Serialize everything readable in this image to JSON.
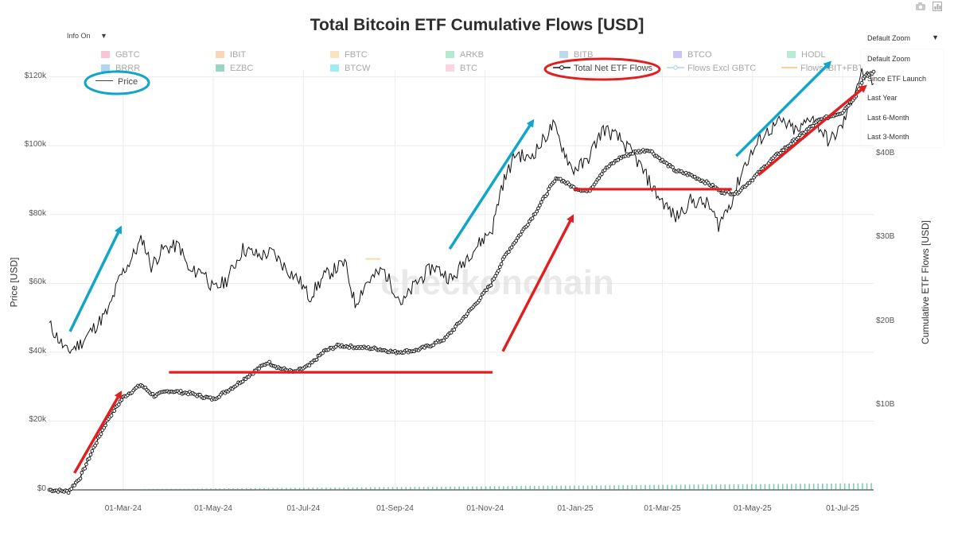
{
  "title": "Total Bitcoin ETF Cumulative Flows [USD]",
  "info_toggle": {
    "label": "Info On",
    "caret": "▼"
  },
  "modebar": {
    "camera_icon": "camera-icon",
    "chart_icon": "bar-chart-icon"
  },
  "zoom": {
    "selected": "Default Zoom",
    "caret": "▼",
    "options": [
      "Default Zoom",
      "Since ETF Launch",
      "Last Year",
      "Last 6-Month",
      "Last 3-Month"
    ]
  },
  "legend": {
    "row1": [
      {
        "label": "GBTC",
        "color": "#f27fa1"
      },
      {
        "label": "IBIT",
        "color": "#f4a261"
      },
      {
        "label": "FBTC",
        "color": "#f6c177"
      },
      {
        "label": "ARKB",
        "color": "#5ccf96"
      },
      {
        "label": "BITB",
        "color": "#6fa8dc"
      },
      {
        "label": "BTCO",
        "color": "#8e7ce0"
      },
      {
        "label": "HODL",
        "color": "#5fd3a0"
      }
    ],
    "row2": [
      {
        "label": "BRRR",
        "color": "#4aa3df"
      },
      {
        "label": "EZBC",
        "color": "#1aa37a"
      },
      {
        "label": "BTCW",
        "color": "#28d9e0"
      },
      {
        "label": "BTC",
        "color": "#f5a3c0"
      }
    ],
    "price_label": "Price",
    "total_label": "Total Net ETF Flows",
    "excl_gbtc_label": "Flows Excl GBTC",
    "ibit_fbtc_label": "Flows IBIT+FBT…"
  },
  "watermark": "checkonchain",
  "annotation_colors": {
    "blue": "#11a5c7",
    "red": "#e02020"
  },
  "chart_data": {
    "type": "line",
    "title": "Total Bitcoin ETF Cumulative Flows [USD]",
    "xlabel": "",
    "x_ticks": [
      "01-Mar-24",
      "01-May-24",
      "01-Jul-24",
      "01-Sep-24",
      "01-Nov-24",
      "01-Jan-25",
      "01-Mar-25",
      "01-May-25",
      "01-Jul-25"
    ],
    "y_left": {
      "label": "Price [USD]",
      "ticks": [
        "$0",
        "$20k",
        "$40k",
        "$60k",
        "$80k",
        "$100k",
        "$120k"
      ],
      "range": [
        0,
        122000
      ]
    },
    "y_right": {
      "label": "Cumulative ETF Flows [USD]",
      "ticks": [
        "$10B",
        "$20B",
        "$30B",
        "$40B"
      ],
      "range": [
        0,
        50
      ]
    },
    "x_range": [
      "2024-01-11",
      "2025-07-22"
    ],
    "series": [
      {
        "name": "Price",
        "axis": "left",
        "style": "line",
        "x": [
          "2024-01-11",
          "2024-01-23",
          "2024-02-01",
          "2024-02-10",
          "2024-02-20",
          "2024-02-28",
          "2024-03-05",
          "2024-03-14",
          "2024-03-20",
          "2024-03-28",
          "2024-04-08",
          "2024-04-15",
          "2024-04-24",
          "2024-05-01",
          "2024-05-10",
          "2024-05-21",
          "2024-06-01",
          "2024-06-10",
          "2024-06-20",
          "2024-06-28",
          "2024-07-05",
          "2024-07-15",
          "2024-07-29",
          "2024-08-05",
          "2024-08-12",
          "2024-08-24",
          "2024-09-06",
          "2024-09-15",
          "2024-09-27",
          "2024-10-10",
          "2024-10-20",
          "2024-10-29",
          "2024-11-06",
          "2024-11-12",
          "2024-11-22",
          "2024-11-30",
          "2024-12-08",
          "2024-12-17",
          "2024-12-30",
          "2025-01-08",
          "2025-01-20",
          "2025-01-31",
          "2025-02-10",
          "2025-02-25",
          "2025-03-10",
          "2025-03-20",
          "2025-04-01",
          "2025-04-08",
          "2025-04-18",
          "2025-04-25",
          "2025-05-08",
          "2025-05-20",
          "2025-06-01",
          "2025-06-10",
          "2025-06-22",
          "2025-07-01",
          "2025-07-10",
          "2025-07-14",
          "2025-07-22"
        ],
        "y": [
          48000,
          40000,
          42500,
          47000,
          52000,
          62000,
          66000,
          73000,
          65000,
          70000,
          71000,
          63000,
          64000,
          58000,
          61000,
          70000,
          68000,
          69000,
          64000,
          61000,
          56000,
          62000,
          66000,
          54000,
          60000,
          64000,
          54000,
          60000,
          65000,
          61000,
          68000,
          72000,
          76000,
          88000,
          98000,
          96000,
          100000,
          106000,
          93000,
          95000,
          105000,
          102000,
          97000,
          86000,
          79000,
          84000,
          83000,
          77000,
          85000,
          94000,
          103000,
          107000,
          104000,
          109000,
          101000,
          106000,
          117000,
          121000,
          118000
        ]
      },
      {
        "name": "Total Net ETF Flows",
        "axis": "right",
        "style": "line-markers",
        "x": [
          "2024-01-11",
          "2024-01-24",
          "2024-02-01",
          "2024-02-10",
          "2024-02-20",
          "2024-03-01",
          "2024-03-13",
          "2024-03-22",
          "2024-04-01",
          "2024-04-15",
          "2024-05-01",
          "2024-05-15",
          "2024-06-01",
          "2024-06-07",
          "2024-06-15",
          "2024-06-25",
          "2024-07-05",
          "2024-07-15",
          "2024-07-25",
          "2024-08-05",
          "2024-08-20",
          "2024-09-01",
          "2024-09-15",
          "2024-09-25",
          "2024-10-05",
          "2024-10-15",
          "2024-10-25",
          "2024-11-05",
          "2024-11-15",
          "2024-11-25",
          "2024-12-05",
          "2024-12-15",
          "2024-12-20",
          "2024-12-31",
          "2025-01-10",
          "2025-01-20",
          "2025-01-31",
          "2025-02-10",
          "2025-02-20",
          "2025-03-01",
          "2025-03-10",
          "2025-03-20",
          "2025-04-01",
          "2025-04-10",
          "2025-04-20",
          "2025-05-01",
          "2025-05-15",
          "2025-06-01",
          "2025-06-15",
          "2025-07-01",
          "2025-07-10",
          "2025-07-15",
          "2025-07-22"
        ],
        "y": [
          0,
          -0.2,
          1.5,
          5.0,
          8.5,
          11.0,
          12.5,
          11.2,
          11.8,
          11.5,
          10.8,
          12.3,
          14.5,
          15.2,
          14.5,
          14.0,
          14.8,
          16.5,
          17.2,
          17.0,
          16.8,
          16.4,
          16.6,
          17.2,
          18.0,
          20.0,
          22.0,
          24.5,
          28.0,
          30.5,
          33.0,
          36.0,
          37.2,
          36.0,
          35.5,
          38.0,
          39.5,
          40.2,
          40.5,
          39.2,
          38.0,
          37.5,
          36.5,
          35.5,
          35.3,
          37.0,
          39.5,
          42.0,
          44.0,
          45.0,
          47.0,
          49.0,
          49.8
        ]
      },
      {
        "name": "Flows IBIT+FBT…",
        "axis": "right",
        "style": "line",
        "x": [
          "2024-08-12",
          "2024-08-22"
        ],
        "y": [
          27.5,
          27.5
        ]
      }
    ],
    "volume_bars": {
      "axis": "right",
      "color": "#1aa37a",
      "x_range": [
        "2024-03-15",
        "2025-07-22"
      ],
      "y_range_approx": [
        0.1,
        0.8
      ]
    },
    "annotations": [
      {
        "type": "arrow",
        "color": "blue",
        "from": [
          "2024-01-25",
          46000
        ],
        "to": [
          "2024-02-28",
          76000
        ]
      },
      {
        "type": "arrow",
        "color": "blue",
        "from": [
          "2024-10-08",
          70000
        ],
        "to": [
          "2024-12-03",
          107000
        ]
      },
      {
        "type": "arrow",
        "color": "blue",
        "from": [
          "2025-04-20",
          97000
        ],
        "to": [
          "2025-06-22",
          124000
        ]
      },
      {
        "type": "arrow",
        "color": "red",
        "from": [
          "2024-01-28",
          2
        ],
        "to": [
          "2024-02-28",
          11.5
        ]
      },
      {
        "type": "arrow",
        "color": "red",
        "from": [
          "2024-11-13",
          16.5
        ],
        "to": [
          "2024-12-30",
          32.5
        ]
      },
      {
        "type": "arrow",
        "color": "red",
        "from": [
          "2025-05-05",
          37.5
        ],
        "to": [
          "2025-07-16",
          48.0
        ]
      },
      {
        "type": "hline",
        "color": "red",
        "x1": "2024-04-01",
        "x2": "2024-11-06",
        "y": 14.0
      },
      {
        "type": "hline",
        "color": "red",
        "x1": "2024-12-31",
        "x2": "2025-04-17",
        "y": 35.8
      }
    ],
    "highlights": [
      {
        "type": "ellipse",
        "color": "blue",
        "target": "Price"
      },
      {
        "type": "ellipse",
        "color": "red",
        "target": "Total Net ETF Flows"
      }
    ]
  }
}
